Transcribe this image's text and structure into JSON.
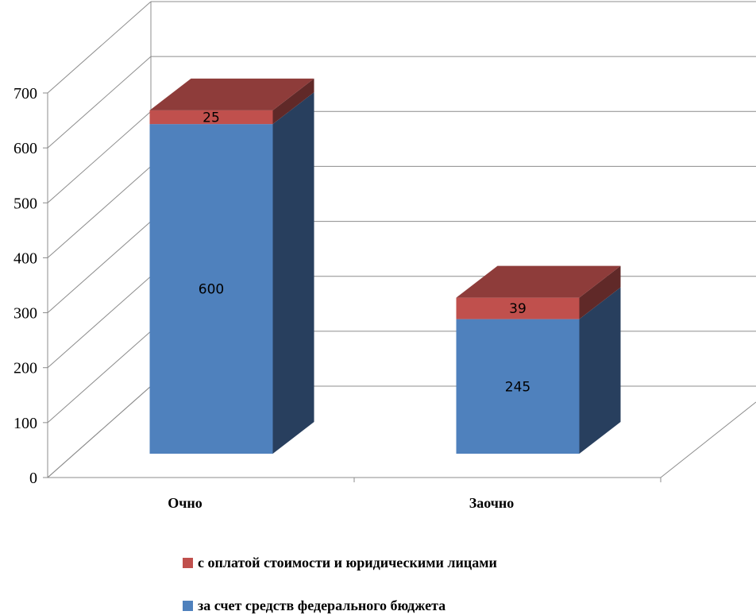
{
  "chart_data": {
    "type": "bar",
    "stacked": true,
    "three_d": true,
    "categories": [
      "Очно",
      "Заочно"
    ],
    "series": [
      {
        "name": "за счет средств федерального бюджета",
        "values": [
          600,
          245
        ],
        "color": "#4F81BD"
      },
      {
        "name": "с оплатой стоимости и юридическими лицами",
        "values": [
          25,
          39
        ],
        "color": "#C0504D"
      }
    ],
    "ylim": [
      0,
      700
    ],
    "y_ticks": [
      "0",
      "100",
      "200",
      "300",
      "400",
      "500",
      "600",
      "700"
    ],
    "grid": true,
    "legend_position": "bottom",
    "title": "",
    "xlabel": "",
    "ylabel": ""
  }
}
